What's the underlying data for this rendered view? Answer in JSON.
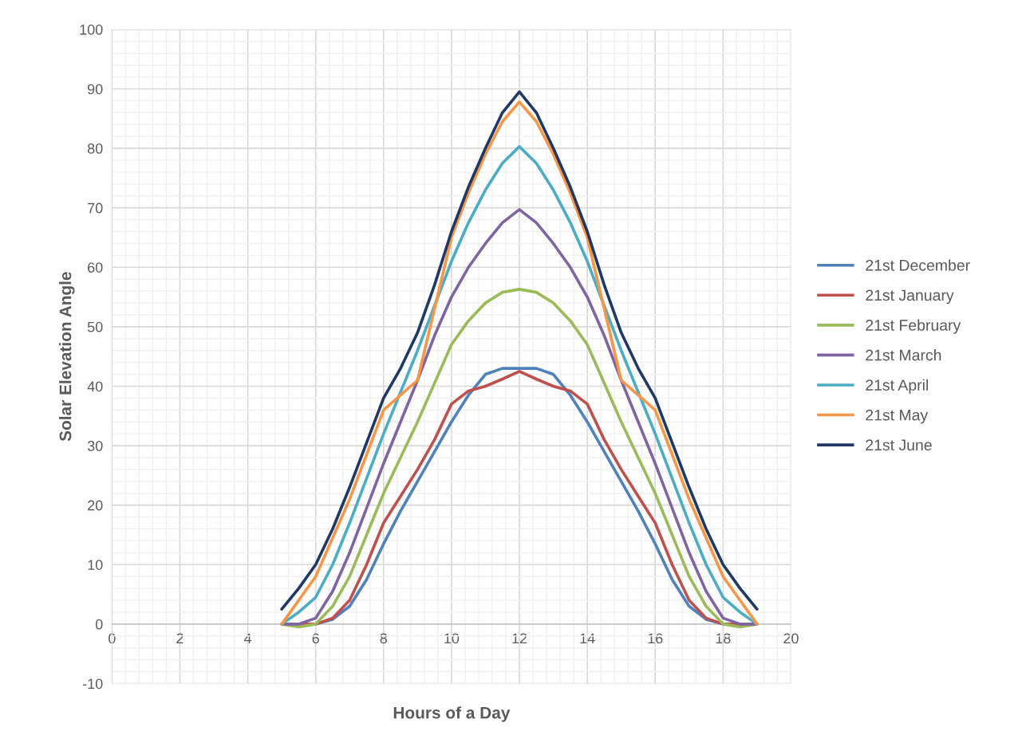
{
  "chart_data": {
    "type": "line",
    "xlabel": "Hours of a Day",
    "ylabel": "Solar Elevation Angle",
    "x": [
      5,
      5.5,
      6,
      6.5,
      7,
      7.5,
      8,
      8.5,
      9,
      9.5,
      10,
      10.5,
      11,
      11.5,
      12,
      12.5,
      13,
      13.5,
      14,
      14.5,
      15,
      15.5,
      16,
      16.5,
      17,
      17.5,
      18,
      18.5,
      19
    ],
    "xlim": [
      0,
      20
    ],
    "xticks": [
      0,
      2,
      4,
      6,
      8,
      10,
      12,
      14,
      16,
      18,
      20
    ],
    "ylim": [
      -10,
      100
    ],
    "yticks": [
      -10,
      0,
      10,
      20,
      30,
      40,
      50,
      60,
      70,
      80,
      90,
      100
    ],
    "grid": true,
    "legend": "right",
    "marker": "none",
    "line_style": "solid",
    "series": [
      {
        "name": "21st December",
        "color": "#4f81bd",
        "values": [
          0,
          0,
          0,
          0.8,
          3,
          7.5,
          13.5,
          19,
          24,
          29,
          34,
          38.5,
          42,
          43,
          43,
          43,
          42,
          38.5,
          34,
          29,
          24,
          19,
          13.5,
          7.5,
          3,
          0.8,
          0,
          0,
          0
        ]
      },
      {
        "name": "21st January",
        "color": "#c0504d",
        "values": [
          0,
          0,
          0,
          1,
          4,
          10,
          17,
          21.5,
          26,
          31,
          37,
          39.2,
          40,
          41.2,
          42.5,
          41.2,
          40,
          39.2,
          37,
          31,
          26,
          21.5,
          17,
          10,
          4,
          1,
          0,
          0,
          0
        ]
      },
      {
        "name": "21st February",
        "color": "#9bbb59",
        "values": [
          0,
          -0.5,
          0,
          3,
          8,
          15,
          22,
          28,
          34,
          40.5,
          47,
          51,
          54,
          55.8,
          56.3,
          55.8,
          54,
          51,
          47,
          40.5,
          34,
          28,
          22,
          15,
          8,
          3,
          0,
          -0.5,
          0
        ]
      },
      {
        "name": "21st March",
        "color": "#8064a2",
        "values": [
          0,
          0,
          1,
          5.5,
          12,
          19.5,
          27,
          34,
          41,
          48.5,
          55,
          60,
          64,
          67.5,
          69.7,
          67.5,
          64,
          60,
          55,
          48.5,
          41,
          34,
          27,
          19.5,
          12,
          5.5,
          1,
          0,
          0
        ]
      },
      {
        "name": "21st April",
        "color": "#4bacc6",
        "values": [
          0,
          2,
          4.5,
          10,
          17,
          24.5,
          32,
          39,
          46,
          53.5,
          61,
          67.5,
          73,
          77.5,
          80.3,
          77.5,
          73,
          67.5,
          61,
          53.5,
          46,
          39,
          32,
          24.5,
          17,
          10,
          4.5,
          2,
          0
        ]
      },
      {
        "name": "21st May",
        "color": "#f79646",
        "values": [
          0,
          4,
          8,
          14.5,
          21,
          28.5,
          36,
          38.5,
          41,
          53,
          65,
          72.5,
          79,
          84.5,
          87.8,
          84.5,
          79,
          72.5,
          65,
          53,
          41,
          38.5,
          36,
          28.5,
          21,
          14.5,
          8,
          4,
          0
        ]
      },
      {
        "name": "21st June",
        "color": "#1f3864",
        "values": [
          2.5,
          6,
          10,
          16,
          23,
          30.5,
          38,
          43,
          49,
          57,
          66,
          73.5,
          80,
          86,
          89.5,
          86,
          80,
          73.5,
          66,
          57,
          49,
          43,
          38,
          30.5,
          23,
          16,
          10,
          6,
          2.5
        ]
      }
    ]
  }
}
